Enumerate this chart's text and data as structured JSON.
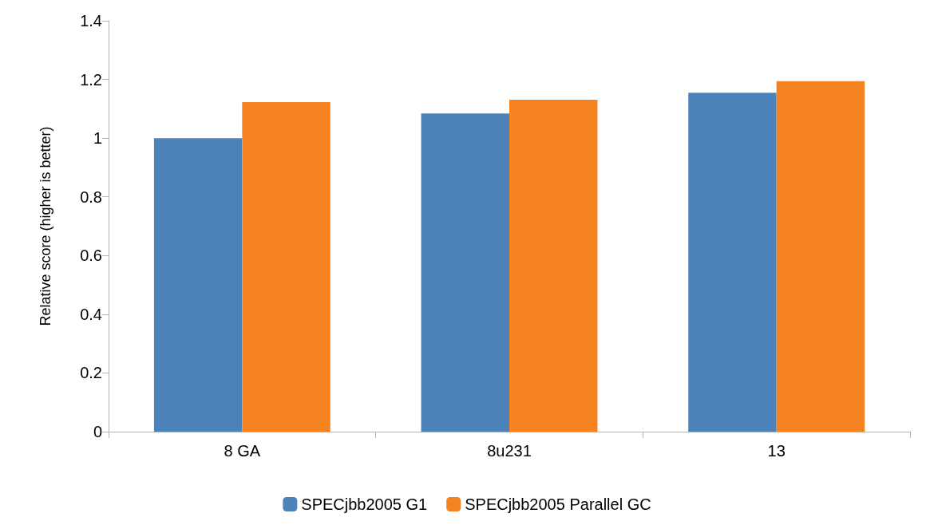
{
  "chart_data": {
    "type": "bar",
    "ylabel": "Relative score (higher is better)",
    "categories": [
      "8 GA",
      "8u231",
      "13"
    ],
    "series": [
      {
        "name": "SPECjbb2005 G1",
        "color": "#4b82b9",
        "values": [
          1.0,
          1.084,
          1.155
        ]
      },
      {
        "name": "SPECjbb2005 Parallel GC",
        "color": "#f58220",
        "values": [
          1.123,
          1.131,
          1.194
        ]
      }
    ],
    "ylim": [
      0,
      1.4
    ],
    "yticks": [
      0,
      0.2,
      0.4,
      0.6,
      0.8,
      1,
      1.2,
      1.4
    ],
    "grid": false,
    "legend": "bottom"
  }
}
